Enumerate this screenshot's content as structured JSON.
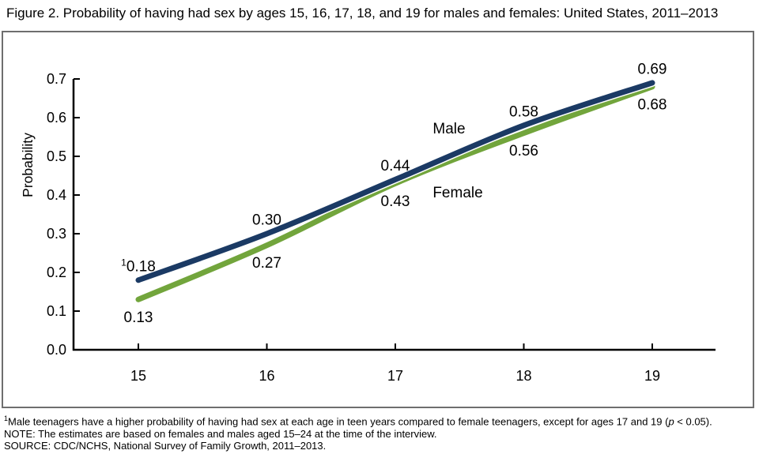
{
  "title": "Figure 2. Probability of having had sex by ages 15, 16, 17, 18, and 19 for males and females: United States, 2011–2013",
  "chart_data": {
    "type": "line",
    "x": [
      15,
      16,
      17,
      18,
      19
    ],
    "x_tick_labels": [
      "15",
      "16",
      "17",
      "18",
      "19"
    ],
    "xlabel": "",
    "ylabel": "Probability",
    "ylim": [
      0.0,
      0.7
    ],
    "ytick_step": 0.1,
    "y_tick_labels": [
      "0.0",
      "0.1",
      "0.2",
      "0.3",
      "0.4",
      "0.5",
      "0.6",
      "0.7"
    ],
    "grid": false,
    "legend_position": "inline-labels-on-chart",
    "series": [
      {
        "name": "Male",
        "color": "#1b3a64",
        "values": [
          0.18,
          0.3,
          0.44,
          0.58,
          0.69
        ],
        "point_labels": [
          "0.18",
          "0.30",
          "0.44",
          "0.58",
          "0.69"
        ],
        "point_label_sups": [
          "1",
          "",
          "",
          "",
          ""
        ]
      },
      {
        "name": "Female",
        "color": "#72a53c",
        "values": [
          0.13,
          0.27,
          0.43,
          0.56,
          0.68
        ],
        "point_labels": [
          "0.13",
          "0.27",
          "0.43",
          "0.56",
          "0.68"
        ],
        "point_label_sups": [
          "",
          "",
          "",
          "",
          ""
        ]
      }
    ]
  },
  "footnotes": {
    "note1_sup": "1",
    "note1_pre": "Male teenagers have a higher probability of having had sex at each age in teen years compared to female teenagers, except for ages 17 and 19 (",
    "note1_p": "p",
    "note1_post": " < 0.05).",
    "note2": "NOTE: The estimates are based on females and males aged 15–24 at the time of the interview.",
    "note3": "SOURCE: CDC/NCHS, National Survey of Family Growth, 2011–2013."
  }
}
